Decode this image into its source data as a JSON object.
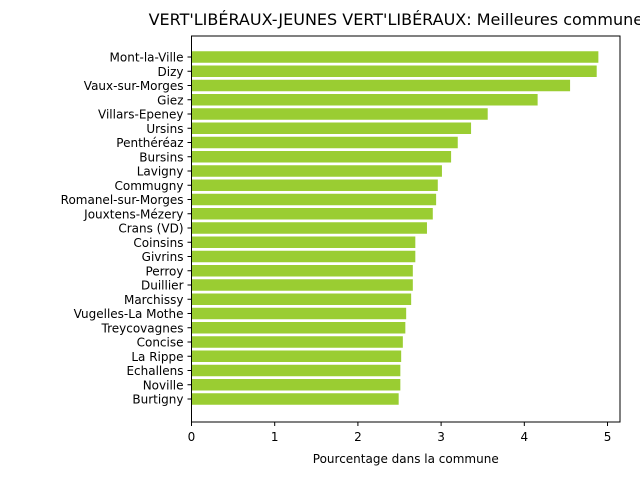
{
  "chart_data": {
    "type": "bar",
    "orientation": "horizontal",
    "title": "VERT'LIBÉRAUX-JEUNES VERT'LIBÉRAUX: Meilleures communes",
    "xlabel": "Pourcentage dans la commune",
    "ylabel": "",
    "xlim": [
      0,
      5.15
    ],
    "xticks": [
      "0",
      "1",
      "2",
      "3",
      "4",
      "5"
    ],
    "grid": false,
    "bar_color": "#9acd32",
    "categories": [
      "Mont-la-Ville",
      "Dizy",
      "Vaux-sur-Morges",
      "Giez",
      "Villars-Epeney",
      "Ursins",
      "Penthéréaz",
      "Bursins",
      "Lavigny",
      "Commugny",
      "Romanel-sur-Morges",
      "Jouxtens-Mézery",
      "Crans (VD)",
      "Coinsins",
      "Givrins",
      "Perroy",
      "Duillier",
      "Marchissy",
      "Vugelles-La Mothe",
      "Treycovagnes",
      "Concise",
      "La Rippe",
      "Echallens",
      "Noville",
      "Burtigny"
    ],
    "values": [
      4.89,
      4.87,
      4.55,
      4.16,
      3.56,
      3.36,
      3.2,
      3.12,
      3.01,
      2.96,
      2.94,
      2.9,
      2.83,
      2.69,
      2.69,
      2.66,
      2.66,
      2.64,
      2.58,
      2.57,
      2.54,
      2.52,
      2.51,
      2.51,
      2.49
    ]
  }
}
